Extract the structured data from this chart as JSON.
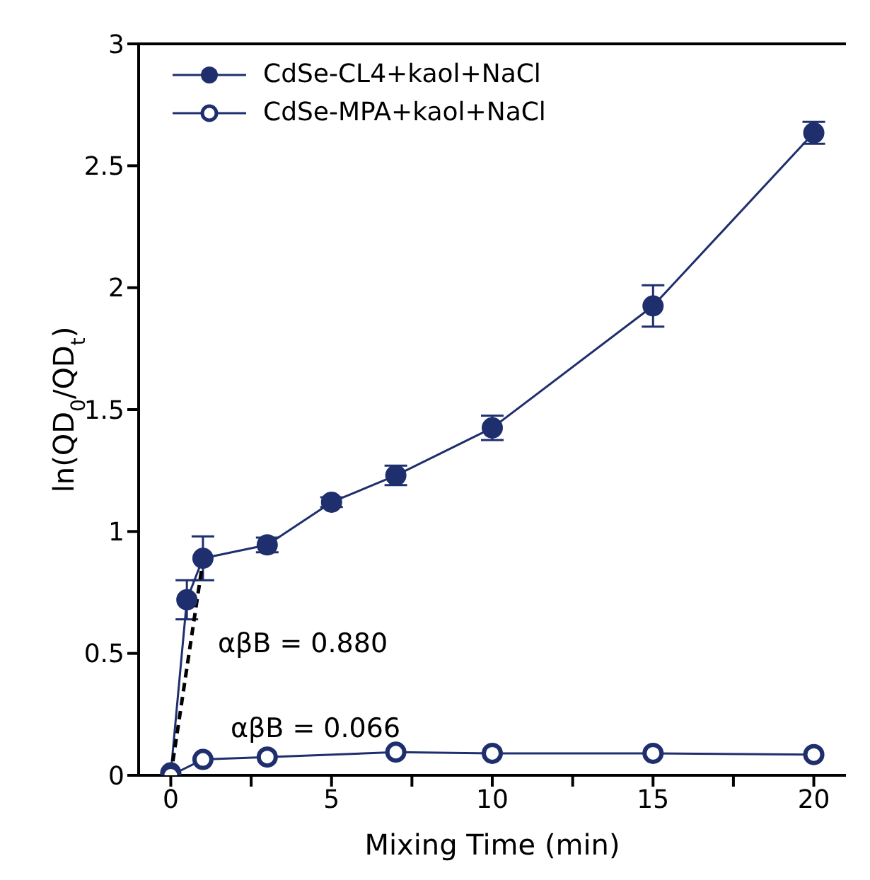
{
  "chart_data": {
    "type": "line",
    "xlabel": "Mixing Time (min)",
    "ylabel": "ln(QD$_{0}$/QD$_{t}$)",
    "xlim": [
      -1,
      21
    ],
    "xticks": [
      0,
      {
        "value": 2.5,
        "label": null
      },
      5,
      {
        "value": 7.5,
        "label": null
      },
      10,
      {
        "value": 12.5,
        "label": null
      },
      15,
      {
        "value": 17.5,
        "label": null
      },
      20
    ],
    "ylim": [
      0,
      3
    ],
    "yticks": [
      0,
      0.5,
      1,
      1.5,
      2,
      2.5,
      3
    ],
    "grid": false,
    "legend": "top left",
    "marker": "circle",
    "line_style": "solid",
    "annotations": [
      "αβB = 0.880",
      "αβB = 0.066"
    ],
    "series": [
      {
        "name": "CdSe-CL4+kaol+NaCl",
        "color": "#1f2f6e",
        "x": [
          0,
          0.5,
          1,
          3,
          5,
          7,
          10,
          15,
          20
        ],
        "values": [
          0.01,
          0.72,
          0.89,
          0.945,
          1.12,
          1.23,
          1.425,
          1.925,
          2.635
        ],
        "errors": [
          null,
          0.08,
          0.09,
          0.03,
          0.02,
          0.04,
          0.05,
          0.085,
          0.045
        ]
      },
      {
        "name": "CdSe-MPA+kaol+NaCl",
        "color": "#1f2f6e",
        "marker": "open circle",
        "x": [
          0,
          1,
          3,
          7,
          10,
          15,
          20
        ],
        "values": [
          0,
          0.065,
          0.075,
          0.095,
          0.09,
          0.09,
          0.085
        ]
      },
      {
        "color": "#000000",
        "line_style": "dashed",
        "marker": "none",
        "x": [
          0,
          1
        ],
        "values": [
          0,
          0.88
        ]
      }
    ]
  }
}
